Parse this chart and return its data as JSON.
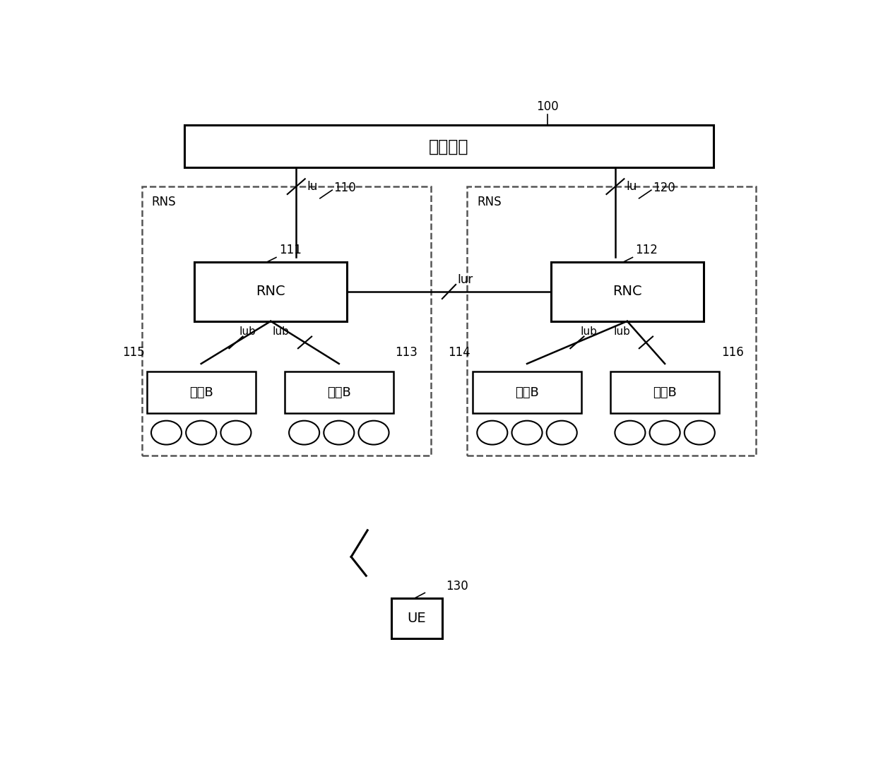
{
  "bg_color": "#ffffff",
  "core_network_label": "核心网络",
  "rns_label": "RNS",
  "rnc_label": "RNC",
  "node_b_label": "节点B",
  "label_100": "100",
  "label_110": "110",
  "label_120": "120",
  "label_111": "111",
  "label_112": "112",
  "label_113": "113",
  "label_114": "114",
  "label_115": "115",
  "label_116": "116",
  "label_130": "130",
  "label_Iu": "Iu",
  "label_Iur": "Iur",
  "label_Iub": "Iub",
  "ue_label": "UE",
  "font_size_label": 12,
  "font_size_box": 14,
  "font_size_node": 13,
  "font_size_cn": 17
}
